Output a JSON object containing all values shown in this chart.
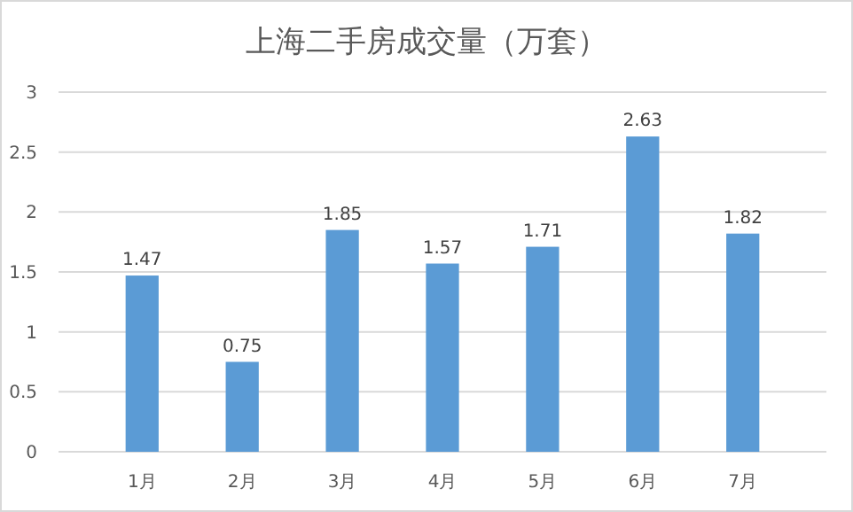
{
  "chart_data": {
    "type": "bar",
    "title": "上海二手房成交量（万套）",
    "categories": [
      "1月",
      "2月",
      "3月",
      "4月",
      "5月",
      "6月",
      "7月"
    ],
    "values": [
      1.47,
      0.75,
      1.85,
      1.57,
      1.71,
      2.63,
      1.82
    ],
    "color": "#5b9bd5",
    "ylim": [
      0,
      3
    ],
    "yticks": [
      0,
      {
        "value": 0.5,
        "label": "0.5"
      },
      1,
      {
        "value": 1.5,
        "label": "1.5"
      },
      2,
      {
        "value": 2.5,
        "label": "2.5"
      },
      3
    ],
    "grid": "y",
    "data_labels": true
  }
}
